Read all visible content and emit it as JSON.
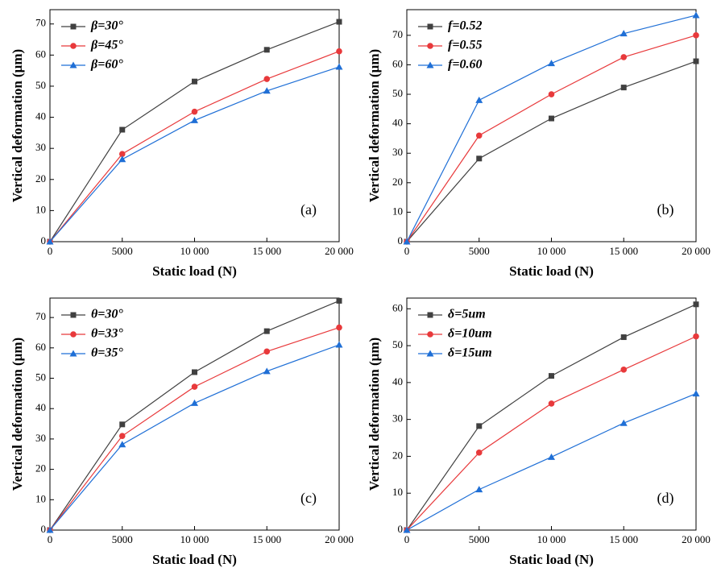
{
  "chart_data": [
    {
      "type": "line",
      "annotation": "(a)",
      "xlabel": "Static load (N)",
      "ylabel": "Vertical deformation (μm)",
      "x": [
        0,
        5000,
        10000,
        15000,
        20000
      ],
      "series": [
        {
          "name": "β=30°",
          "color": "#404040",
          "marker": "square",
          "values": [
            0,
            36,
            51.5,
            61.7,
            70.7
          ]
        },
        {
          "name": "β=45°",
          "color": "#e8393b",
          "marker": "circle",
          "values": [
            0,
            28.2,
            41.8,
            52.3,
            61.2
          ]
        },
        {
          "name": "β=60°",
          "color": "#1f6fd6",
          "marker": "triangle",
          "values": [
            0,
            26.5,
            39,
            48.5,
            56.2
          ]
        }
      ],
      "xlim": [
        0,
        20000
      ],
      "ylim": [
        0,
        74.6
      ],
      "xticks": [
        0,
        5000,
        {
          "value": 10000,
          "label": "10 000"
        },
        {
          "value": 15000,
          "label": "15 000"
        },
        {
          "value": 20000,
          "label": "20 000"
        }
      ],
      "yticks": [
        0,
        10,
        20,
        30,
        40,
        50,
        60,
        70
      ],
      "legend": "upper left"
    },
    {
      "type": "line",
      "annotation": "(b)",
      "xlabel": "Static load (N)",
      "ylabel": "Vertical deformation (μm)",
      "x": [
        0,
        5000,
        10000,
        15000,
        20000
      ],
      "series": [
        {
          "name": "f=0.52",
          "color": "#404040",
          "marker": "square",
          "values": [
            0,
            28.2,
            41.8,
            52.3,
            61.2
          ]
        },
        {
          "name": "f=0.55",
          "color": "#e8393b",
          "marker": "circle",
          "values": [
            0,
            36,
            50,
            62.6,
            70
          ]
        },
        {
          "name": "f=0.60",
          "color": "#1f6fd6",
          "marker": "triangle",
          "values": [
            0,
            48,
            60.5,
            70.6,
            76.8
          ]
        }
      ],
      "xlim": [
        0,
        20000
      ],
      "ylim": [
        0,
        78.7
      ],
      "xticks": [
        0,
        5000,
        {
          "value": 10000,
          "label": "10 000"
        },
        {
          "value": 15000,
          "label": "15 000"
        },
        {
          "value": 20000,
          "label": "20 000"
        }
      ],
      "yticks": [
        0,
        10,
        20,
        30,
        40,
        50,
        60,
        70
      ],
      "legend": "upper left"
    },
    {
      "type": "line",
      "annotation": "(c)",
      "xlabel": "Static load (N)",
      "ylabel": "Vertical deformation (μm)",
      "x": [
        0,
        5000,
        10000,
        15000,
        20000
      ],
      "series": [
        {
          "name": "θ=30°",
          "color": "#404040",
          "marker": "square",
          "values": [
            0,
            34.8,
            52,
            65.5,
            75.5
          ]
        },
        {
          "name": "θ=33°",
          "color": "#e8393b",
          "marker": "circle",
          "values": [
            0,
            31,
            47.2,
            58.8,
            66.7
          ]
        },
        {
          "name": "θ=35°",
          "color": "#1f6fd6",
          "marker": "triangle",
          "values": [
            0,
            28.2,
            41.8,
            52.3,
            61
          ]
        }
      ],
      "xlim": [
        0,
        20000
      ],
      "ylim": [
        0,
        76.4
      ],
      "xticks": [
        0,
        5000,
        {
          "value": 10000,
          "label": "10 000"
        },
        {
          "value": 15000,
          "label": "15 000"
        },
        {
          "value": 20000,
          "label": "20 000"
        }
      ],
      "yticks": [
        0,
        10,
        20,
        30,
        40,
        50,
        60,
        70
      ],
      "legend": "upper left"
    },
    {
      "type": "line",
      "annotation": "(d)",
      "xlabel": "Static load (N)",
      "ylabel": "Vertical deformation (μm)",
      "x": [
        0,
        5000,
        10000,
        15000,
        20000
      ],
      "series": [
        {
          "name": "δ=5um",
          "color": "#404040",
          "marker": "square",
          "values": [
            0,
            28.2,
            41.8,
            52.3,
            61.2
          ]
        },
        {
          "name": "δ=10um",
          "color": "#e8393b",
          "marker": "circle",
          "values": [
            0,
            21,
            34.3,
            43.5,
            52.5
          ]
        },
        {
          "name": "δ=15um",
          "color": "#1f6fd6",
          "marker": "triangle",
          "values": [
            0,
            11,
            19.8,
            29,
            37
          ]
        }
      ],
      "xlim": [
        0,
        20000
      ],
      "ylim": [
        0,
        62.9
      ],
      "xticks": [
        0,
        5000,
        {
          "value": 10000,
          "label": "10 000"
        },
        {
          "value": 15000,
          "label": "15 000"
        },
        {
          "value": 20000,
          "label": "20 000"
        }
      ],
      "yticks": [
        0,
        10,
        20,
        30,
        40,
        50,
        60
      ],
      "legend": "upper left"
    }
  ]
}
